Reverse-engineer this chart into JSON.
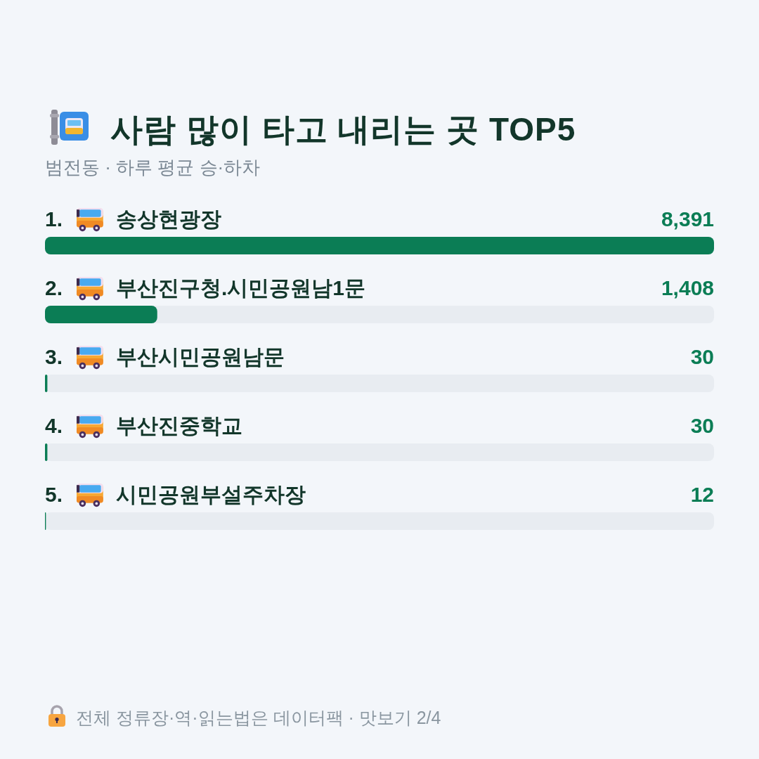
{
  "chart_data": {
    "type": "bar",
    "orientation": "horizontal",
    "title": "사람 많이 타고 내리는 곳 TOP5",
    "subtitle": "범전동 · 하루 평균 승·하차",
    "categories": [
      "송상현광장",
      "부산진구청.시민공원남1문",
      "부산시민공원남문",
      "부산진중학교",
      "시민공원부설주차장"
    ],
    "values": [
      8391,
      1408,
      30,
      30,
      12
    ],
    "value_labels": [
      "8,391",
      "1,408",
      "30",
      "30",
      "12"
    ],
    "color": "#0b7d55",
    "tick_labels": "y",
    "annotations": [
      "1.",
      "2.",
      "3.",
      "4.",
      "5.",
      "전체 정류장·역·읽는법은 데이터팩 · 맛보기 2/4"
    ]
  }
}
